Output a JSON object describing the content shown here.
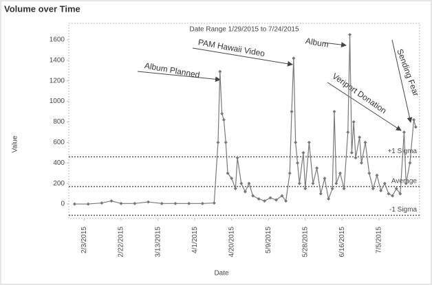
{
  "chart_data": {
    "type": "line",
    "title": "Volume over Time",
    "subtitle": "Date Range 1/29/2015 to 7/24/2015",
    "x_label": "Date",
    "y_label": "Value",
    "x": [
      "1/29/2015",
      "2/5/2015",
      "2/12/2015",
      "2/17/2015",
      "2/22/2015",
      "3/1/2015",
      "3/8/2015",
      "3/15/2015",
      "3/22/2015",
      "3/29/2015",
      "4/5/2015",
      "4/11/2015",
      "4/13/2015",
      "4/14/2015",
      "4/15/2015",
      "4/16/2015",
      "4/17/2015",
      "4/18/2015",
      "4/20/2015",
      "4/22/2015",
      "4/23/2015",
      "4/25/2015",
      "4/27/2015",
      "4/29/2015",
      "5/1/2015",
      "5/4/2015",
      "5/7/2015",
      "5/10/2015",
      "5/13/2015",
      "5/16/2015",
      "5/18/2015",
      "5/20/2015",
      "5/21/2015",
      "5/22/2015",
      "5/23/2015",
      "5/24/2015",
      "5/25/2015",
      "5/27/2015",
      "5/28/2015",
      "5/30/2015",
      "6/1/2015",
      "6/3/2015",
      "6/5/2015",
      "6/7/2015",
      "6/9/2015",
      "6/11/2015",
      "6/12/2015",
      "6/13/2015",
      "6/15/2015",
      "6/17/2015",
      "6/19/2015",
      "6/20/2015",
      "6/21/2015",
      "6/22/2015",
      "6/23/2015",
      "6/25/2015",
      "6/26/2015",
      "6/28/2015",
      "6/30/2015",
      "7/2/2015",
      "7/4/2015",
      "7/6/2015",
      "7/8/2015",
      "7/10/2015",
      "7/12/2015",
      "7/14/2015",
      "7/16/2015",
      "7/18/2015",
      "7/19/2015",
      "7/21/2015",
      "7/23/2015",
      "7/24/2015"
    ],
    "series": [
      {
        "name": "Volume",
        "color": "#777777",
        "values": [
          0,
          0,
          10,
          30,
          5,
          5,
          20,
          5,
          5,
          5,
          5,
          10,
          600,
          1290,
          880,
          820,
          600,
          300,
          250,
          150,
          450,
          200,
          120,
          200,
          80,
          50,
          30,
          60,
          40,
          80,
          30,
          300,
          900,
          1420,
          600,
          400,
          200,
          500,
          150,
          600,
          200,
          350,
          100,
          250,
          50,
          150,
          900,
          200,
          300,
          150,
          700,
          1650,
          500,
          800,
          450,
          650,
          400,
          600,
          300,
          150,
          280,
          130,
          200,
          100,
          80,
          150,
          100,
          700,
          200,
          400,
          820,
          750
        ]
      }
    ],
    "xlim": [
      "1/26/2015",
      "7/26/2015"
    ],
    "xticks": [
      "2/3/2015",
      "2/22/2015",
      "3/13/2015",
      "4/1/2015",
      "4/20/2015",
      "5/9/2015",
      "5/28/2015",
      "6/16/2015",
      "7/5/2015"
    ],
    "ylim": [
      -140,
      1760
    ],
    "yticks": [
      0,
      200,
      400,
      600,
      800,
      1000,
      1200,
      1400,
      1600
    ],
    "reference_lines": [
      {
        "label": "+1 Sigma",
        "value": 460
      },
      {
        "label": "Average",
        "value": 170
      },
      {
        "label": "-1 Sigma",
        "value": -110
      }
    ],
    "annotations": [
      "Album Planned",
      "PAM Hawaii Video",
      "Album",
      "Veriport Donation",
      "Sending Fear"
    ]
  }
}
